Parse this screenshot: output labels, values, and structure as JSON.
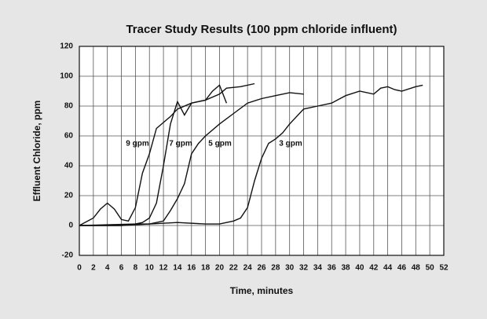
{
  "chart_data": {
    "type": "line",
    "title": "Tracer Study Results (100 ppm chloride influent)",
    "x_label": "Time, minutes",
    "y_label": "Effluent Chloride, ppm",
    "xlim": [
      0,
      52
    ],
    "xticks": [
      0,
      2,
      4,
      6,
      8,
      10,
      12,
      14,
      16,
      18,
      20,
      22,
      24,
      26,
      28,
      30,
      32,
      34,
      36,
      38,
      40,
      42,
      44,
      46,
      48,
      50,
      52
    ],
    "ylim": [
      -20,
      120
    ],
    "yticks": [
      -20,
      0,
      20,
      40,
      60,
      80,
      100,
      120
    ],
    "grid": true,
    "series": [
      {
        "name": "9 gpm",
        "color": "#111111",
        "x": [
          0,
          2,
          3,
          4,
          5,
          6,
          7,
          8,
          9,
          10,
          11,
          12,
          13,
          14,
          16,
          18,
          19,
          20,
          21
        ],
        "values": [
          0,
          5,
          11,
          15,
          11,
          4,
          3,
          12,
          35,
          48,
          65,
          69,
          73,
          78,
          82,
          84,
          90,
          94,
          82
        ]
      },
      {
        "name": "7 gpm",
        "color": "#111111",
        "x": [
          0,
          6,
          8,
          9,
          10,
          11,
          12,
          13,
          14,
          15,
          16,
          18,
          20,
          21,
          23,
          25
        ],
        "values": [
          0,
          0,
          1,
          2,
          5,
          15,
          40,
          68,
          83,
          74,
          82,
          84,
          88,
          92,
          93,
          95
        ]
      },
      {
        "name": "5 gpm",
        "color": "#111111",
        "x": [
          0,
          8,
          10,
          12,
          13,
          14,
          15,
          16,
          17,
          18,
          20,
          22,
          24,
          26,
          28,
          30,
          32
        ],
        "values": [
          0,
          1,
          1,
          3,
          10,
          18,
          28,
          48,
          55,
          60,
          68,
          75,
          82,
          85,
          87,
          89,
          88
        ]
      },
      {
        "name": "3 gpm",
        "color": "#111111",
        "x": [
          0,
          4,
          6,
          10,
          14,
          18,
          20,
          22,
          23,
          24,
          25,
          26,
          27,
          28,
          29,
          30,
          32,
          34,
          36,
          38,
          40,
          42,
          43,
          44,
          45,
          46,
          48,
          49
        ],
        "values": [
          0,
          0,
          0,
          1,
          2,
          1,
          1,
          3,
          5,
          12,
          30,
          45,
          55,
          58,
          62,
          68,
          78,
          80,
          82,
          87,
          90,
          88,
          92,
          93,
          91,
          90,
          93,
          94
        ]
      }
    ]
  }
}
